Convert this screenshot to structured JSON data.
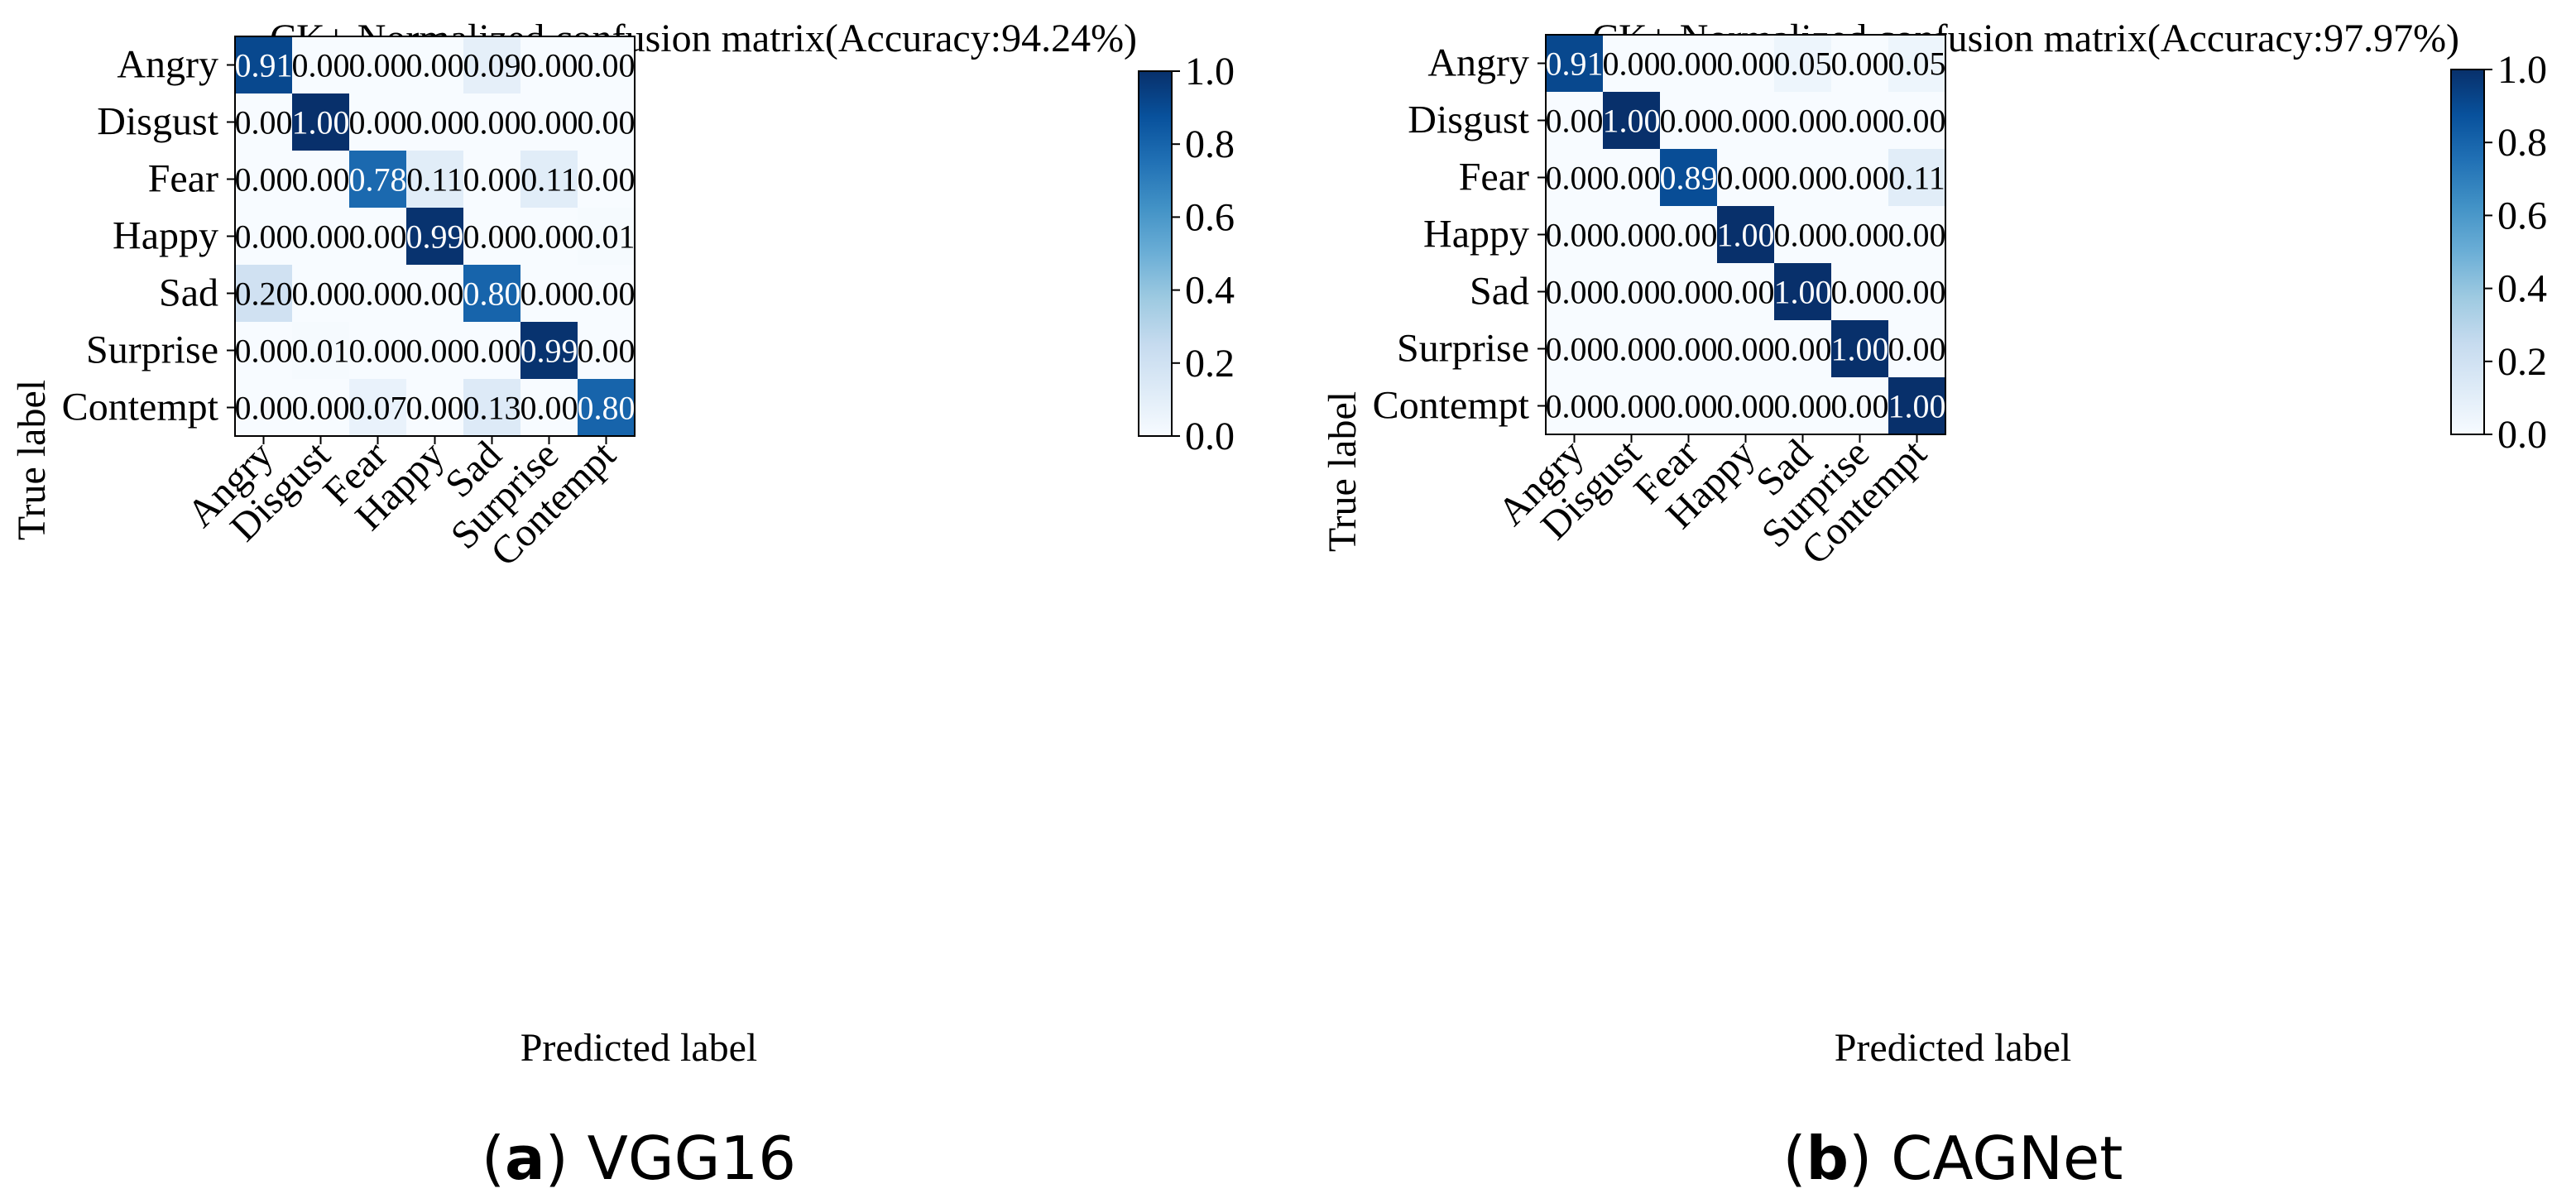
{
  "figure": {
    "captions": [
      {
        "label": "a",
        "text": "VGG16"
      },
      {
        "label": "b",
        "text": "CAGNet"
      }
    ]
  },
  "chart_data": [
    {
      "type": "heatmap",
      "title": "CK+ Normalized confusion matrix(Accuracy:94.24%)",
      "xlabel": "Predicted label",
      "ylabel": "True label",
      "x_categories": [
        "Angry",
        "Disgust",
        "Fear",
        "Happy",
        "Sad",
        "Surprise",
        "Contempt"
      ],
      "y_categories": [
        "Angry",
        "Disgust",
        "Fear",
        "Happy",
        "Sad",
        "Surprise",
        "Contempt"
      ],
      "values": [
        [
          0.91,
          0.0,
          0.0,
          0.0,
          0.09,
          0.0,
          0.0
        ],
        [
          0.0,
          1.0,
          0.0,
          0.0,
          0.0,
          0.0,
          0.0
        ],
        [
          0.0,
          0.0,
          0.78,
          0.11,
          0.0,
          0.11,
          0.0
        ],
        [
          0.0,
          0.0,
          0.0,
          0.99,
          0.0,
          0.0,
          0.01
        ],
        [
          0.2,
          0.0,
          0.0,
          0.0,
          0.8,
          0.0,
          0.0
        ],
        [
          0.0,
          0.01,
          0.0,
          0.0,
          0.0,
          0.99,
          0.0
        ],
        [
          0.0,
          0.0,
          0.07,
          0.0,
          0.13,
          0.0,
          0.8
        ]
      ],
      "colorbar": {
        "colormap": "Blues",
        "range": [
          0.0,
          1.0
        ],
        "ticks": [
          "0.0",
          "0.2",
          "0.4",
          "0.6",
          "0.8",
          "1.0"
        ]
      }
    },
    {
      "type": "heatmap",
      "title": "CK+ Normalized confusion matrix(Accuracy:97.97%)",
      "xlabel": "Predicted label",
      "ylabel": "True label",
      "x_categories": [
        "Angry",
        "Disgust",
        "Fear",
        "Happy",
        "Sad",
        "Surprise",
        "Contempt"
      ],
      "y_categories": [
        "Angry",
        "Disgust",
        "Fear",
        "Happy",
        "Sad",
        "Surprise",
        "Contempt"
      ],
      "values": [
        [
          0.91,
          0.0,
          0.0,
          0.0,
          0.05,
          0.0,
          0.05
        ],
        [
          0.0,
          1.0,
          0.0,
          0.0,
          0.0,
          0.0,
          0.0
        ],
        [
          0.0,
          0.0,
          0.89,
          0.0,
          0.0,
          0.0,
          0.11
        ],
        [
          0.0,
          0.0,
          0.0,
          1.0,
          0.0,
          0.0,
          0.0
        ],
        [
          0.0,
          0.0,
          0.0,
          0.0,
          1.0,
          0.0,
          0.0
        ],
        [
          0.0,
          0.0,
          0.0,
          0.0,
          0.0,
          1.0,
          0.0
        ],
        [
          0.0,
          0.0,
          0.0,
          0.0,
          0.0,
          0.0,
          1.0
        ]
      ],
      "colorbar": {
        "colormap": "Blues",
        "range": [
          0.0,
          1.0
        ],
        "ticks": [
          "0.0",
          "0.2",
          "0.4",
          "0.6",
          "0.8",
          "1.0"
        ]
      }
    }
  ]
}
